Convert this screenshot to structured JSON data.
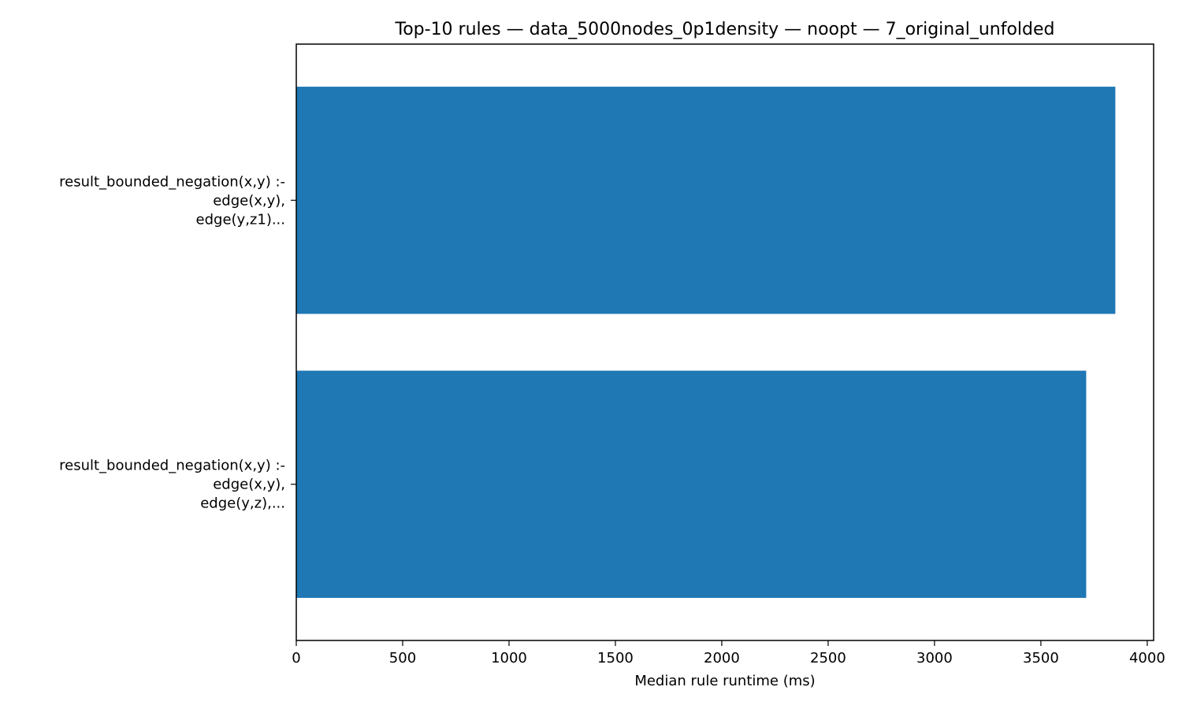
{
  "chart_data": {
    "type": "bar",
    "orientation": "horizontal",
    "title": "Top-10 rules — data_5000nodes_0p1density — noopt — 7_original_unfolded",
    "xlabel": "Median rule runtime (ms)",
    "ylabel": "",
    "xlim": [
      0,
      4030
    ],
    "xticks": [
      0,
      500,
      1000,
      1500,
      2000,
      2500,
      3000,
      3500,
      4000
    ],
    "xtick_labels": [
      "0",
      "500",
      "1000",
      "1500",
      "2000",
      "2500",
      "3000",
      "3500",
      "4000"
    ],
    "categories": [
      [
        "result_bounded_negation(x,y) :-",
        "edge(x,y),",
        "edge(y,z1)..."
      ],
      [
        "result_bounded_negation(x,y) :-",
        "edge(x,y),",
        "edge(y,z),..."
      ]
    ],
    "values": [
      3850,
      3713
    ],
    "bar_color": "#1f77b4",
    "grid": false,
    "legend": "none"
  }
}
